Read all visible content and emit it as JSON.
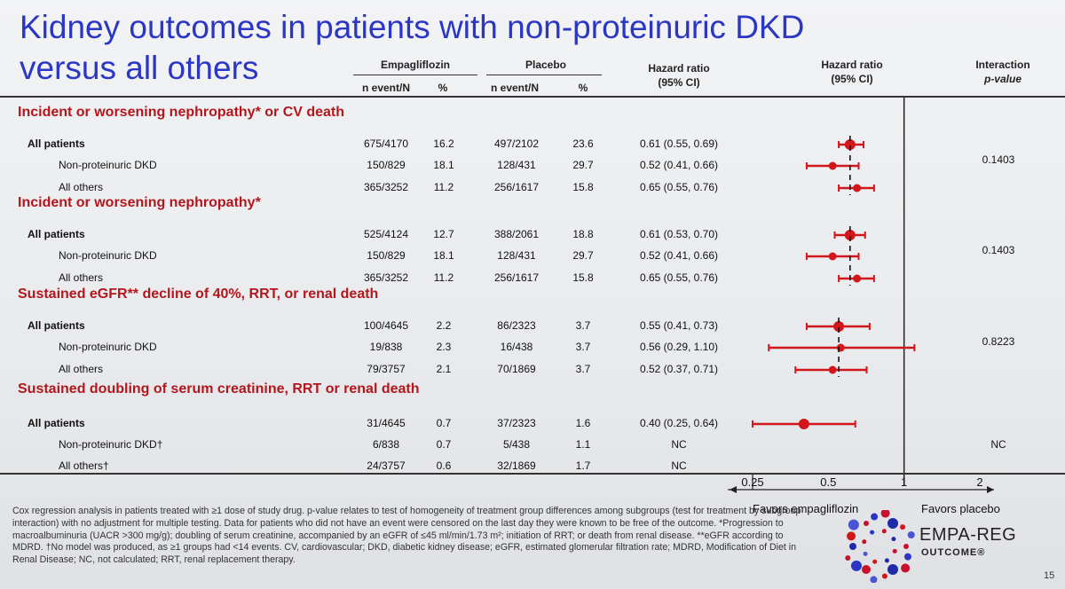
{
  "title_line1": "Kidney outcomes in patients with non-proteinuric DKD",
  "title_line2": "versus all others",
  "headers": {
    "empa": "Empagliflozin",
    "placebo": "Placebo",
    "nevent": "n event/N",
    "pct": "%",
    "hr": "Hazard ratio",
    "ci": "(95% CI)",
    "interaction": "Interaction",
    "pvalue": "p-value"
  },
  "chart_data": {
    "type": "forest",
    "x_axis": {
      "scale": "log",
      "ticks": [
        "0.25",
        "0.5",
        "1",
        "2"
      ],
      "range": [
        0.25,
        2
      ]
    },
    "sections": [
      {
        "title": "Incident or worsening nephropathy* or CV death",
        "rows": [
          {
            "label": "All patients",
            "bold": true,
            "empa_n": "675/4170",
            "empa_pct": "16.2",
            "plac_n": "497/2102",
            "plac_pct": "23.6",
            "hr_text": "0.61 (0.55, 0.69)",
            "hr": 0.61,
            "lo": 0.55,
            "hi": 0.69,
            "p": ""
          },
          {
            "label": "Non-proteinuric DKD",
            "bold": false,
            "empa_n": "150/829",
            "empa_pct": "18.1",
            "plac_n": "128/431",
            "plac_pct": "29.7",
            "hr_text": "0.52 (0.41, 0.66)",
            "hr": 0.52,
            "lo": 0.41,
            "hi": 0.66,
            "p": "0.1403"
          },
          {
            "label": "All others",
            "bold": false,
            "empa_n": "365/3252",
            "empa_pct": "11.2",
            "plac_n": "256/1617",
            "plac_pct": "15.8",
            "hr_text": "0.65 (0.55, 0.76)",
            "hr": 0.65,
            "lo": 0.55,
            "hi": 0.76,
            "p": ""
          }
        ]
      },
      {
        "title": "Incident or worsening nephropathy*",
        "rows": [
          {
            "label": "All patients",
            "bold": true,
            "empa_n": "525/4124",
            "empa_pct": "12.7",
            "plac_n": "388/2061",
            "plac_pct": "18.8",
            "hr_text": "0.61 (0.53, 0.70)",
            "hr": 0.61,
            "lo": 0.53,
            "hi": 0.7,
            "p": ""
          },
          {
            "label": "Non-proteinuric DKD",
            "bold": false,
            "empa_n": "150/829",
            "empa_pct": "18.1",
            "plac_n": "128/431",
            "plac_pct": "29.7",
            "hr_text": "0.52 (0.41, 0.66)",
            "hr": 0.52,
            "lo": 0.41,
            "hi": 0.66,
            "p": "0.1403"
          },
          {
            "label": "All others",
            "bold": false,
            "empa_n": "365/3252",
            "empa_pct": "11.2",
            "plac_n": "256/1617",
            "plac_pct": "15.8",
            "hr_text": "0.65 (0.55, 0.76)",
            "hr": 0.65,
            "lo": 0.55,
            "hi": 0.76,
            "p": ""
          }
        ]
      },
      {
        "title": "Sustained eGFR** decline of 40%, RRT, or renal death",
        "rows": [
          {
            "label": "All patients",
            "bold": true,
            "empa_n": "100/4645",
            "empa_pct": "2.2",
            "plac_n": "86/2323",
            "plac_pct": "3.7",
            "hr_text": "0.55 (0.41, 0.73)",
            "hr": 0.55,
            "lo": 0.41,
            "hi": 0.73,
            "p": ""
          },
          {
            "label": "Non-proteinuric DKD",
            "bold": false,
            "empa_n": "19/838",
            "empa_pct": "2.3",
            "plac_n": "16/438",
            "plac_pct": "3.7",
            "hr_text": "0.56 (0.29, 1.10)",
            "hr": 0.56,
            "lo": 0.29,
            "hi": 1.1,
            "p": "0.8223"
          },
          {
            "label": "All others",
            "bold": false,
            "empa_n": "79/3757",
            "empa_pct": "2.1",
            "plac_n": "70/1869",
            "plac_pct": "3.7",
            "hr_text": "0.52 (0.37, 0.71)",
            "hr": 0.52,
            "lo": 0.37,
            "hi": 0.71,
            "p": ""
          }
        ]
      },
      {
        "title": "Sustained doubling of serum creatinine, RRT or renal death",
        "rows": [
          {
            "label": "All patients",
            "bold": true,
            "empa_n": "31/4645",
            "empa_pct": "0.7",
            "plac_n": "37/2323",
            "plac_pct": "1.6",
            "hr_text": "0.40 (0.25, 0.64)",
            "hr": 0.4,
            "lo": 0.25,
            "hi": 0.64,
            "p": ""
          },
          {
            "label": "Non-proteinuric DKD†",
            "bold": false,
            "empa_n": "6/838",
            "empa_pct": "0.7",
            "plac_n": "5/438",
            "plac_pct": "1.1",
            "hr_text": "NC",
            "hr": null,
            "lo": null,
            "hi": null,
            "p": "NC"
          },
          {
            "label": "All others†",
            "bold": false,
            "empa_n": "24/3757",
            "empa_pct": "0.6",
            "plac_n": "32/1869",
            "plac_pct": "1.7",
            "hr_text": "NC",
            "hr": null,
            "lo": null,
            "hi": null,
            "p": ""
          }
        ]
      }
    ],
    "favors_left": "Favors empagliflozin",
    "favors_right": "Favors placebo"
  },
  "footnote": "Cox regression analysis in patients treated with ≥1 dose of study drug. p-value relates to test of homogeneity of treatment group differences among subgroups (test for treatment by subgroup interaction) with no adjustment for multiple testing. Data for patients who did not have an event were censored on the last day they were known to be free of the outcome. *Progression to macroalbuminuria (UACR >300 mg/g); doubling of serum creatinine, accompanied by an eGFR of ≤45 ml/min/1.73 m²; initiation of RRT; or death from renal disease. **eGFR according to MDRD. †No model was produced, as ≥1 groups had <14 events. CV, cardiovascular; DKD, diabetic kidney disease; eGFR, estimated glomerular filtration rate; MDRD, Modification of Diet in Renal Disease; NC, not calculated; RRT, renal replacement therapy.",
  "logo": {
    "name": "EMPA-REG",
    "sub": "OUTCOME®"
  },
  "page_number": "15",
  "colors": {
    "title": "#2b36c4",
    "section": "#b3161c",
    "marker": "#d1161c"
  }
}
